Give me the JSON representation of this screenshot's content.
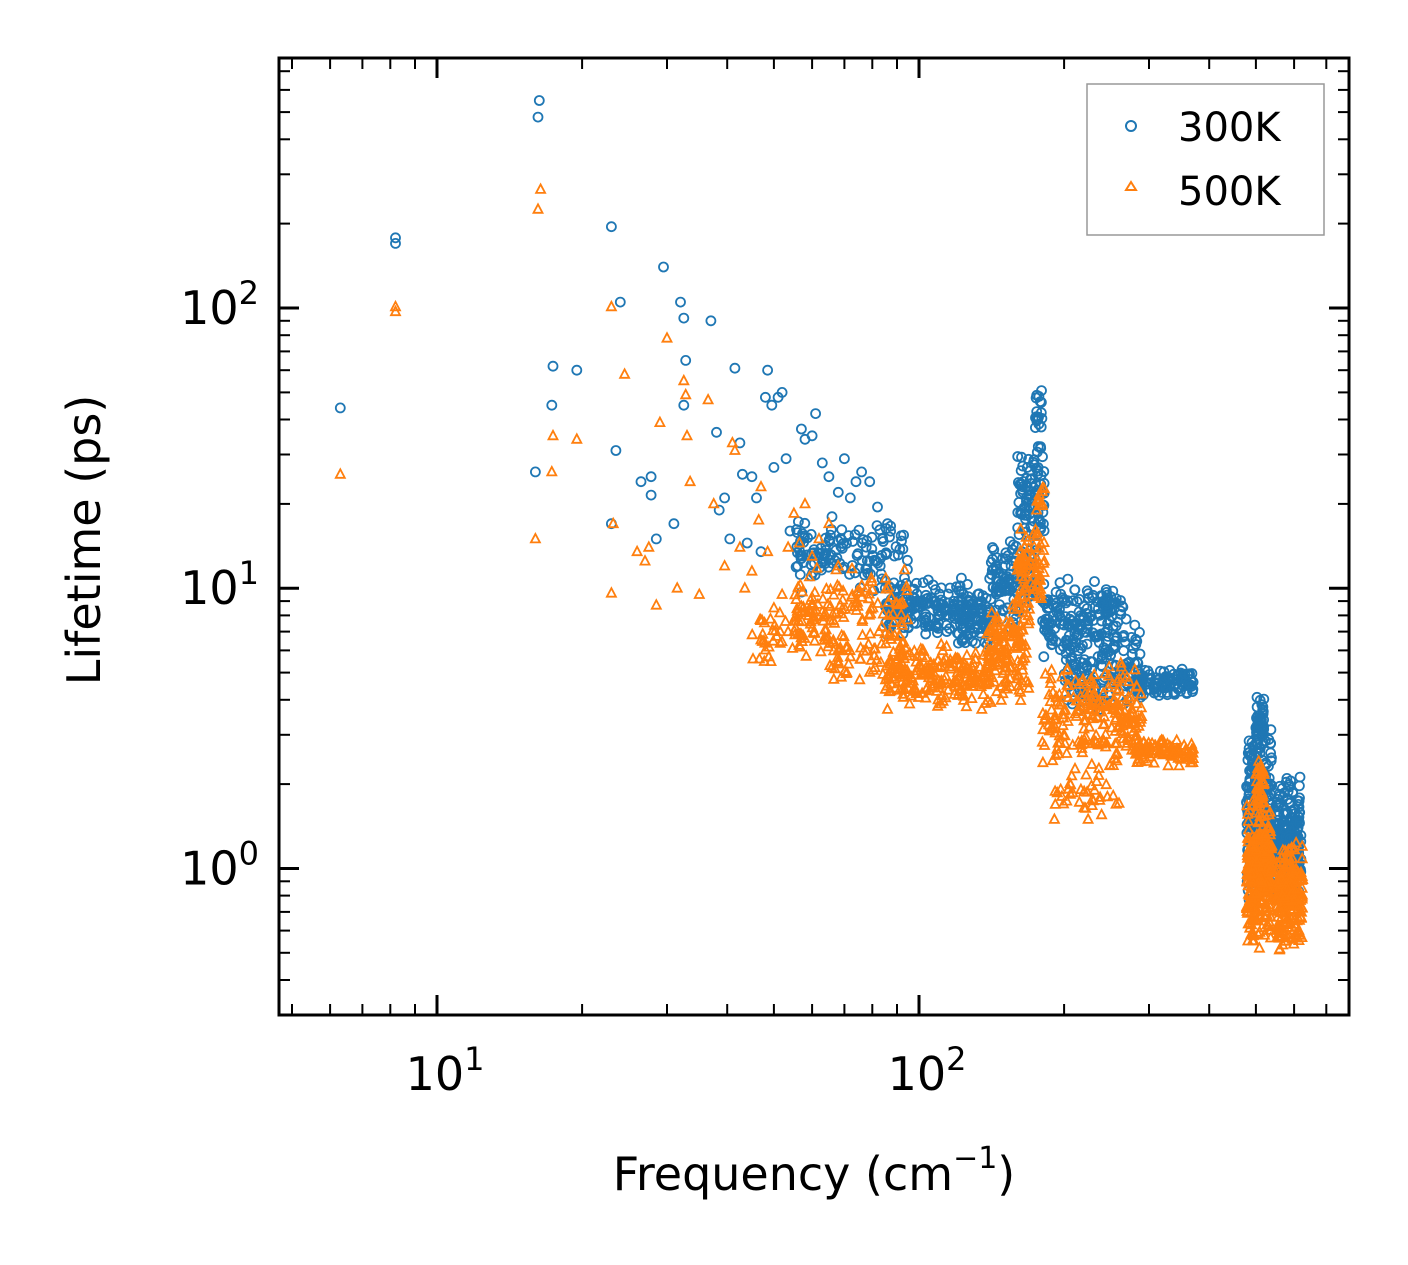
{
  "chart_data": {
    "type": "scatter",
    "xscale": "log",
    "yscale": "log",
    "xlim": [
      4.7,
      780
    ],
    "ylim": [
      0.3,
      780
    ],
    "xlabel_main": "Frequency (cm",
    "xlabel_exp": "−1",
    "xlabel_close": ")",
    "ylabel": "Lifetime (ps)",
    "x_ticks": [
      {
        "base": "10",
        "exp": "1",
        "value": 10
      },
      {
        "base": "10",
        "exp": "2",
        "value": 100
      }
    ],
    "y_ticks": [
      {
        "base": "10",
        "exp": "0",
        "value": 1
      },
      {
        "base": "10",
        "exp": "1",
        "value": 10
      },
      {
        "base": "10",
        "exp": "2",
        "value": 100
      }
    ],
    "legend": {
      "position": "top-right"
    },
    "colors": {
      "s300": "#1f77b4",
      "s500": "#ff7f0e"
    },
    "series": [
      {
        "name": "300K",
        "marker": "circle",
        "points": [
          [
            6.3,
            44
          ],
          [
            8.2,
            170
          ],
          [
            8.2,
            178
          ],
          [
            16.2,
            480
          ],
          [
            16.3,
            550
          ],
          [
            16.0,
            26
          ],
          [
            17.3,
            45
          ],
          [
            17.4,
            62
          ],
          [
            19.5,
            60
          ],
          [
            23.0,
            195
          ],
          [
            23.5,
            31
          ],
          [
            23.0,
            17
          ],
          [
            24.0,
            105
          ],
          [
            26.5,
            24
          ],
          [
            27.8,
            21.5
          ],
          [
            27.8,
            25
          ],
          [
            28.5,
            15
          ],
          [
            29.5,
            140
          ],
          [
            31.0,
            17
          ],
          [
            32.0,
            105
          ],
          [
            32.5,
            92
          ],
          [
            32.8,
            65
          ],
          [
            32.5,
            45
          ],
          [
            37.0,
            90
          ],
          [
            38.0,
            36
          ],
          [
            38.5,
            19
          ],
          [
            39.5,
            21
          ],
          [
            40.5,
            15
          ],
          [
            41.5,
            61
          ],
          [
            42.5,
            33
          ],
          [
            43.0,
            25.5
          ],
          [
            44.0,
            14.5
          ],
          [
            45.0,
            25
          ],
          [
            46.0,
            21
          ],
          [
            47.0,
            13.5
          ],
          [
            48.0,
            48
          ],
          [
            48.5,
            60
          ],
          [
            49.5,
            45
          ],
          [
            50.0,
            27
          ],
          [
            51.0,
            48
          ],
          [
            52.0,
            50
          ],
          [
            53.0,
            29
          ],
          [
            54.0,
            16
          ],
          [
            56.0,
            12
          ],
          [
            57.0,
            37
          ],
          [
            58.0,
            34
          ],
          [
            60.0,
            35
          ],
          [
            61.0,
            42
          ],
          [
            63.0,
            28
          ],
          [
            65.0,
            25
          ],
          [
            66.0,
            18
          ],
          [
            68.0,
            22
          ],
          [
            70.0,
            29
          ],
          [
            72.0,
            21
          ],
          [
            74.0,
            24
          ],
          [
            76.0,
            26
          ],
          [
            79.0,
            24
          ],
          [
            82.0,
            19.5
          ],
          [
            84.0,
            15
          ],
          [
            86.0,
            17
          ]
        ],
        "clusters": [
          {
            "x0": 55,
            "x1": 95,
            "y0": 9.5,
            "y1": 18,
            "n": 130,
            "seed": 11
          },
          {
            "x0": 85,
            "x1": 135,
            "y0": 6.5,
            "y1": 11,
            "n": 200,
            "seed": 12
          },
          {
            "x0": 120,
            "x1": 140,
            "y0": 6.0,
            "y1": 9.5,
            "n": 60,
            "seed": 13
          },
          {
            "x0": 140,
            "x1": 175,
            "y0": 7,
            "y1": 16,
            "n": 120,
            "seed": 14
          },
          {
            "x0": 160,
            "x1": 182,
            "y0": 14,
            "y1": 34,
            "n": 90,
            "seed": 15
          },
          {
            "x0": 174,
            "x1": 180,
            "y0": 34,
            "y1": 55,
            "n": 18,
            "seed": 16
          },
          {
            "x0": 180,
            "x1": 240,
            "y0": 5.5,
            "y1": 11,
            "n": 110,
            "seed": 17
          },
          {
            "x0": 200,
            "x1": 290,
            "y0": 3.5,
            "y1": 8,
            "n": 170,
            "seed": 18
          },
          {
            "x0": 240,
            "x1": 265,
            "y0": 7,
            "y1": 10.5,
            "n": 40,
            "seed": 19
          },
          {
            "x0": 280,
            "x1": 372,
            "y0": 4.0,
            "y1": 5.2,
            "n": 110,
            "seed": 20
          },
          {
            "x0": 478,
            "x1": 540,
            "y0": 0.75,
            "y1": 3.2,
            "n": 320,
            "seed": 21
          },
          {
            "x0": 500,
            "x1": 520,
            "y0": 2.5,
            "y1": 4.2,
            "n": 50,
            "seed": 22
          },
          {
            "x0": 550,
            "x1": 620,
            "y0": 0.75,
            "y1": 2.2,
            "n": 240,
            "seed": 23
          }
        ]
      },
      {
        "name": "500K",
        "marker": "triangle",
        "points": [
          [
            6.3,
            25.5
          ],
          [
            8.2,
            97
          ],
          [
            8.2,
            101
          ],
          [
            16.2,
            225
          ],
          [
            16.4,
            265
          ],
          [
            16.0,
            15
          ],
          [
            17.3,
            26
          ],
          [
            17.4,
            35
          ],
          [
            19.5,
            34
          ],
          [
            23.0,
            101
          ],
          [
            23.2,
            17
          ],
          [
            23.0,
            9.6
          ],
          [
            24.5,
            58
          ],
          [
            26.0,
            13.5
          ],
          [
            27.0,
            12.5
          ],
          [
            27.5,
            14
          ],
          [
            28.5,
            8.7
          ],
          [
            29.0,
            39
          ],
          [
            30.0,
            78
          ],
          [
            31.5,
            10
          ],
          [
            32.5,
            55
          ],
          [
            32.8,
            49
          ],
          [
            33.0,
            35
          ],
          [
            33.5,
            24
          ],
          [
            35.0,
            9.5
          ],
          [
            36.5,
            47
          ],
          [
            37.5,
            20
          ],
          [
            39.5,
            12
          ],
          [
            41.0,
            33
          ],
          [
            41.5,
            31
          ],
          [
            42.5,
            14
          ],
          [
            43.5,
            10
          ],
          [
            45.0,
            11.5
          ],
          [
            46.5,
            17.5
          ],
          [
            47.0,
            23
          ],
          [
            48.5,
            13.5
          ],
          [
            50.0,
            8.5
          ],
          [
            51.5,
            7
          ],
          [
            52.0,
            9.5
          ],
          [
            53.5,
            14
          ],
          [
            55.0,
            18.5
          ],
          [
            56.5,
            14.5
          ],
          [
            58.0,
            20
          ],
          [
            60.0,
            13
          ],
          [
            62.0,
            15
          ],
          [
            63.5,
            8
          ],
          [
            65.0,
            17
          ],
          [
            68.0,
            12
          ]
        ],
        "clusters": [
          {
            "x0": 45,
            "x1": 65,
            "y0": 5.3,
            "y1": 8.5,
            "n": 55,
            "seed": 31
          },
          {
            "x0": 55,
            "x1": 95,
            "y0": 6,
            "y1": 12,
            "n": 120,
            "seed": 32
          },
          {
            "x0": 65,
            "x1": 95,
            "y0": 4.5,
            "y1": 7.5,
            "n": 70,
            "seed": 33
          },
          {
            "x0": 85,
            "x1": 140,
            "y0": 3.6,
            "y1": 6.5,
            "n": 200,
            "seed": 34
          },
          {
            "x0": 138,
            "x1": 170,
            "y0": 3.6,
            "y1": 9.5,
            "n": 140,
            "seed": 35
          },
          {
            "x0": 160,
            "x1": 182,
            "y0": 8,
            "y1": 18,
            "n": 80,
            "seed": 36
          },
          {
            "x0": 175,
            "x1": 182,
            "y0": 18,
            "y1": 25,
            "n": 12,
            "seed": 37
          },
          {
            "x0": 180,
            "x1": 290,
            "y0": 2.2,
            "y1": 5.5,
            "n": 230,
            "seed": 38
          },
          {
            "x0": 190,
            "x1": 260,
            "y0": 1.4,
            "y1": 2.4,
            "n": 40,
            "seed": 39
          },
          {
            "x0": 280,
            "x1": 372,
            "y0": 2.3,
            "y1": 2.9,
            "n": 90,
            "seed": 40
          },
          {
            "x0": 478,
            "x1": 540,
            "y0": 0.5,
            "y1": 1.8,
            "n": 300,
            "seed": 41
          },
          {
            "x0": 500,
            "x1": 520,
            "y0": 1.6,
            "y1": 2.5,
            "n": 30,
            "seed": 42
          },
          {
            "x0": 550,
            "x1": 625,
            "y0": 0.48,
            "y1": 1.3,
            "n": 230,
            "seed": 43
          }
        ]
      }
    ]
  }
}
